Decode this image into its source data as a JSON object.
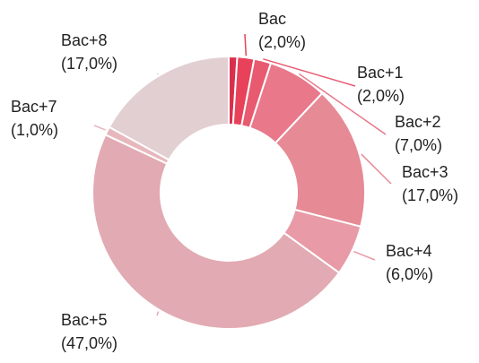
{
  "chart_data": {
    "type": "donut",
    "categories": [
      null,
      "Bac",
      "Bac+1",
      "Bac+2",
      "Bac+3",
      "Bac+4",
      "Bac+5",
      "Bac+7",
      "Bac+8"
    ],
    "values": [
      1,
      2,
      2,
      7,
      17,
      6,
      47,
      1,
      17
    ],
    "value_labels": [
      null,
      "(2,0%)",
      "(2,0%)",
      "(7,0%)",
      "(17,0%)",
      "(6,0%)",
      "(47,0%)",
      "(1,0%)",
      "(17,0%)"
    ],
    "colors": [
      "#d9304c",
      "#e8425a",
      "#e85a70",
      "#e8788a",
      "#e68a96",
      "#e89aa6",
      "#e2aab2",
      "#e6b8bd",
      "#e2cfd2"
    ]
  }
}
